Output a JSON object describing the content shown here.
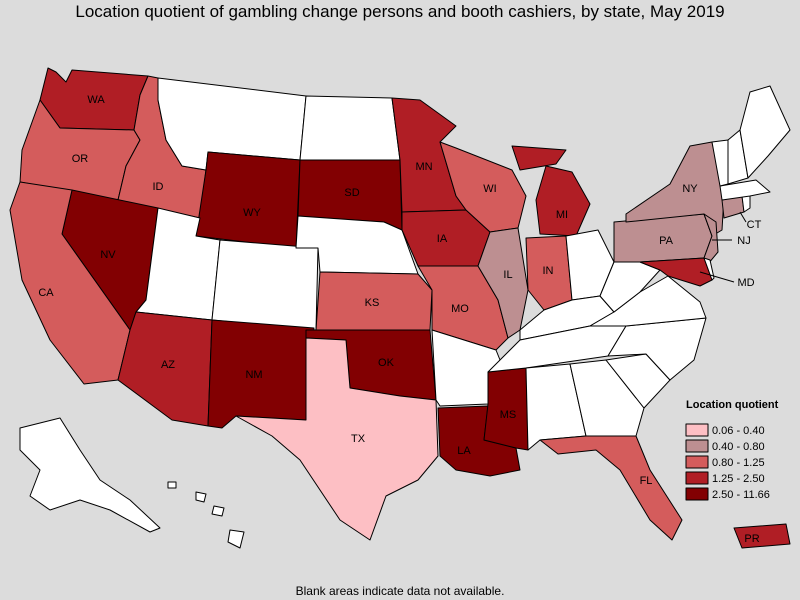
{
  "title": "Location quotient of gambling change persons and booth cashiers, by state, May 2019",
  "footnote": "Blank areas indicate data not available.",
  "legend": {
    "title": "Location quotient",
    "bins": [
      {
        "label": "0.06 - 0.40",
        "color": "#fdbfc4"
      },
      {
        "label": "0.40 - 0.80",
        "color": "#bd8f91"
      },
      {
        "label": "0.80 - 1.25",
        "color": "#d45c5c"
      },
      {
        "label": "1.25 - 2.50",
        "color": "#b01e25"
      },
      {
        "label": "2.50 - 11.66",
        "color": "#820002"
      }
    ]
  },
  "no_data_color": "#ffffff",
  "states": {
    "WA": {
      "label": "WA",
      "bin": 3
    },
    "OR": {
      "label": "OR",
      "bin": 2
    },
    "ID": {
      "label": "ID",
      "bin": 2
    },
    "CA": {
      "label": "CA",
      "bin": 2
    },
    "NV": {
      "label": "NV",
      "bin": 4
    },
    "AZ": {
      "label": "AZ",
      "bin": 3
    },
    "NM": {
      "label": "NM",
      "bin": 4
    },
    "WY": {
      "label": "WY",
      "bin": 4
    },
    "SD": {
      "label": "SD",
      "bin": 4
    },
    "MN": {
      "label": "MN",
      "bin": 3
    },
    "IA": {
      "label": "IA",
      "bin": 3
    },
    "KS": {
      "label": "KS",
      "bin": 2
    },
    "OK": {
      "label": "OK",
      "bin": 4
    },
    "TX": {
      "label": "TX",
      "bin": 0
    },
    "WI": {
      "label": "WI",
      "bin": 2
    },
    "IL": {
      "label": "IL",
      "bin": 1
    },
    "MO": {
      "label": "MO",
      "bin": 2
    },
    "MI": {
      "label": "MI",
      "bin": 3
    },
    "IN": {
      "label": "IN",
      "bin": 2
    },
    "MS": {
      "label": "MS",
      "bin": 4
    },
    "LA": {
      "label": "LA",
      "bin": 4
    },
    "FL": {
      "label": "FL",
      "bin": 2
    },
    "NY": {
      "label": "NY",
      "bin": 1
    },
    "PA": {
      "label": "PA",
      "bin": 1
    },
    "NJ": {
      "label": "NJ",
      "bin": 1
    },
    "CT": {
      "label": "CT",
      "bin": 1
    },
    "MD": {
      "label": "MD",
      "bin": 3
    },
    "PR": {
      "label": "PR",
      "bin": 3
    },
    "MT": {
      "label": "",
      "bin": null
    },
    "ND": {
      "label": "",
      "bin": null
    },
    "UT": {
      "label": "",
      "bin": null
    },
    "CO": {
      "label": "",
      "bin": null
    },
    "NE": {
      "label": "",
      "bin": null
    },
    "AR": {
      "label": "",
      "bin": null
    },
    "AL": {
      "label": "",
      "bin": null
    },
    "GA": {
      "label": "",
      "bin": null
    },
    "SC": {
      "label": "",
      "bin": null
    },
    "NC": {
      "label": "",
      "bin": null
    },
    "TN": {
      "label": "",
      "bin": null
    },
    "KY": {
      "label": "",
      "bin": null
    },
    "VA": {
      "label": "",
      "bin": null
    },
    "WV": {
      "label": "",
      "bin": null
    },
    "OH": {
      "label": "",
      "bin": null
    },
    "ME": {
      "label": "",
      "bin": null
    },
    "NH": {
      "label": "",
      "bin": null
    },
    "VT": {
      "label": "",
      "bin": null
    },
    "MA": {
      "label": "",
      "bin": null
    },
    "RI": {
      "label": "",
      "bin": null
    },
    "DE": {
      "label": "",
      "bin": null
    },
    "AK": {
      "label": "",
      "bin": null
    },
    "HI": {
      "label": "",
      "bin": null
    }
  }
}
